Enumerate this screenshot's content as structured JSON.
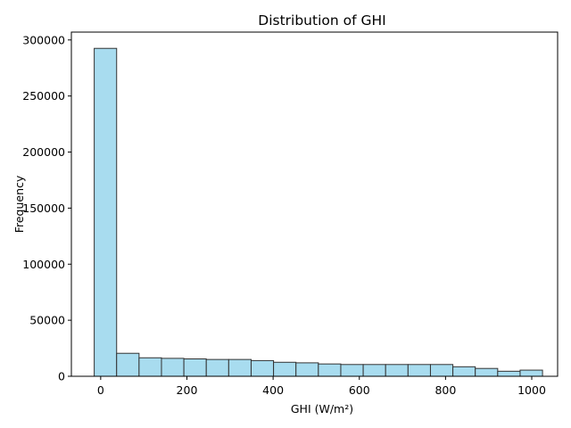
{
  "chart_data": {
    "type": "bar",
    "title": "Distribution of GHI",
    "xlabel": "GHI (W/m²)",
    "ylabel": "Frequency",
    "xlim": [
      -68,
      1060
    ],
    "ylim": [
      0,
      307000
    ],
    "xticks": [
      0,
      200,
      400,
      600,
      800,
      1000
    ],
    "yticks": [
      0,
      50000,
      100000,
      150000,
      200000,
      250000,
      300000
    ],
    "bin_edges": [
      -15,
      37,
      89,
      141,
      193,
      245,
      297,
      349,
      401,
      453,
      505,
      557,
      609,
      661,
      713,
      765,
      817,
      869,
      921,
      973,
      1025
    ],
    "values": [
      292500,
      20500,
      16500,
      16000,
      15500,
      15000,
      15000,
      14000,
      12500,
      12000,
      11000,
      10500,
      10500,
      10500,
      10500,
      10500,
      8500,
      7000,
      4500,
      5500
    ],
    "bar_color": "#a8dcef",
    "edge_color": "#333333",
    "grid": false
  }
}
